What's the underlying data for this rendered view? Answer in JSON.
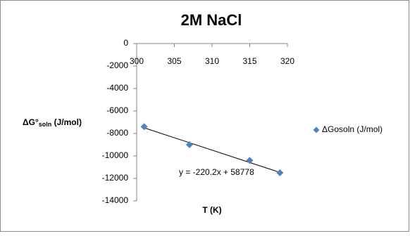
{
  "chart_data": {
    "type": "scatter",
    "title": "2M NaCl",
    "x_label": "T (K)",
    "y_label_parts": [
      "ΔG°",
      "soln",
      " (J/mol)"
    ],
    "series": [
      {
        "name": "ΔGosoln (J/mol)",
        "color": "#4f81bd",
        "x": [
          301,
          307,
          315,
          319
        ],
        "values": [
          -7400,
          -9000,
          -10400,
          -11500
        ]
      }
    ],
    "trendline": {
      "label": "y = -220.2x + 58778",
      "slope": -220.2,
      "intercept": 58778,
      "color": "#000000"
    },
    "xlim": [
      300,
      320
    ],
    "xticks": [
      300,
      305,
      310,
      315,
      320
    ],
    "ylim": [
      -14000,
      0
    ],
    "yticks": [
      0,
      -2000,
      -4000,
      -6000,
      -8000,
      -10000,
      -12000,
      -14000
    ],
    "legend": "right"
  }
}
